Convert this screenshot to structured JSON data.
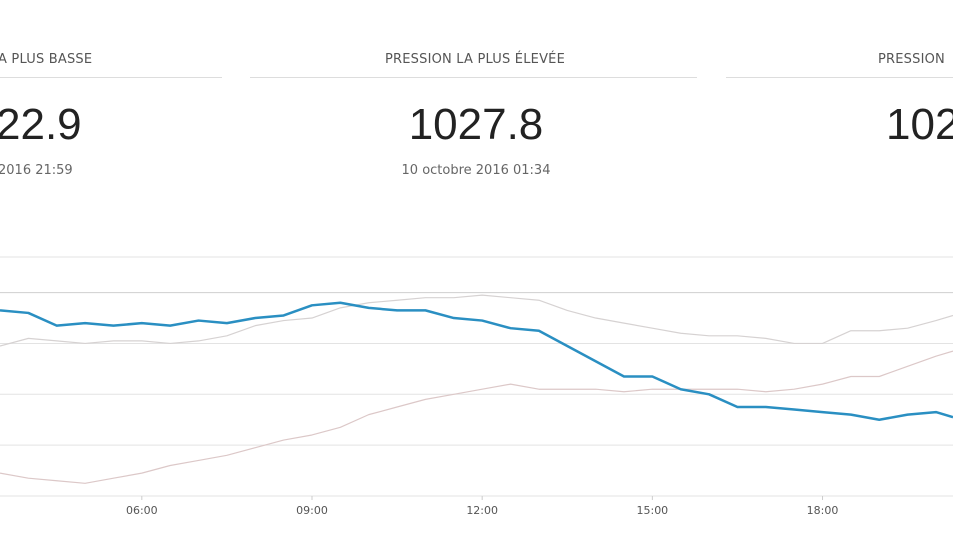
{
  "stats": [
    {
      "label": "A PLUS BASSE",
      "value": "22.9",
      "date": "2016 21:59"
    },
    {
      "label": "PRESSION LA PLUS ÉLEVÉE",
      "value": "1027.8",
      "date": "10 octobre 2016 01:34"
    },
    {
      "label": "PRESSION",
      "value": "102"
    }
  ],
  "chart_data": {
    "type": "line",
    "x": [
      3.5,
      4,
      4.5,
      5,
      5.5,
      6,
      6.5,
      7,
      7.5,
      8,
      8.5,
      9,
      9.5,
      10,
      10.5,
      11,
      11.5,
      12,
      12.5,
      13,
      13.5,
      14,
      14.5,
      15,
      15.5,
      16,
      16.5,
      17,
      17.5,
      18,
      18.5,
      19,
      19.5,
      20,
      20.3
    ],
    "xlim": [
      3.5,
      20.3
    ],
    "xticks": [
      {
        "value": 6,
        "label": "06:00"
      },
      {
        "value": 9,
        "label": "09:00"
      },
      {
        "value": 12,
        "label": "12:00"
      },
      {
        "value": 15,
        "label": "15:00"
      },
      {
        "value": 18,
        "label": "18:00"
      }
    ],
    "ylim": [
      1020,
      1029.4
    ],
    "yticks": [
      1020,
      1022,
      1024,
      1026,
      1028
    ],
    "grid": true,
    "series": [
      {
        "color": "#d6d2d2",
        "values": [
          1025.9,
          1026.2,
          1026.1,
          1026.0,
          1026.1,
          1026.1,
          1026.0,
          1026.1,
          1026.3,
          1026.7,
          1026.9,
          1027.0,
          1027.4,
          1027.6,
          1027.7,
          1027.8,
          1027.8,
          1027.9,
          1027.8,
          1027.7,
          1027.3,
          1027.0,
          1026.8,
          1026.6,
          1026.4,
          1026.3,
          1026.3,
          1026.2,
          1026.0,
          1026.0,
          1026.5,
          1026.5,
          1026.6,
          1026.9,
          1027.1
        ]
      },
      {
        "color": "#dcc8c8",
        "values": [
          1020.9,
          1020.7,
          1020.6,
          1020.5,
          1020.7,
          1020.9,
          1021.2,
          1021.4,
          1021.6,
          1021.9,
          1022.2,
          1022.4,
          1022.7,
          1023.2,
          1023.5,
          1023.8,
          1024.0,
          1024.2,
          1024.4,
          1024.2,
          1024.2,
          1024.2,
          1024.1,
          1024.2,
          1024.2,
          1024.2,
          1024.2,
          1024.1,
          1024.2,
          1024.4,
          1024.7,
          1024.7,
          1025.1,
          1025.5,
          1025.7
        ]
      },
      {
        "color": "#2a8fc2",
        "values": [
          1027.3,
          1027.2,
          1026.7,
          1026.8,
          1026.7,
          1026.8,
          1026.7,
          1026.9,
          1026.8,
          1027.0,
          1027.1,
          1027.5,
          1027.6,
          1027.4,
          1027.3,
          1027.3,
          1027.0,
          1026.9,
          1026.6,
          1026.5,
          1025.9,
          1025.3,
          1024.7,
          1024.7,
          1024.2,
          1024.0,
          1023.5,
          1023.5,
          1023.4,
          1023.3,
          1023.2,
          1023.0,
          1023.2,
          1023.3,
          1023.1
        ]
      }
    ]
  }
}
